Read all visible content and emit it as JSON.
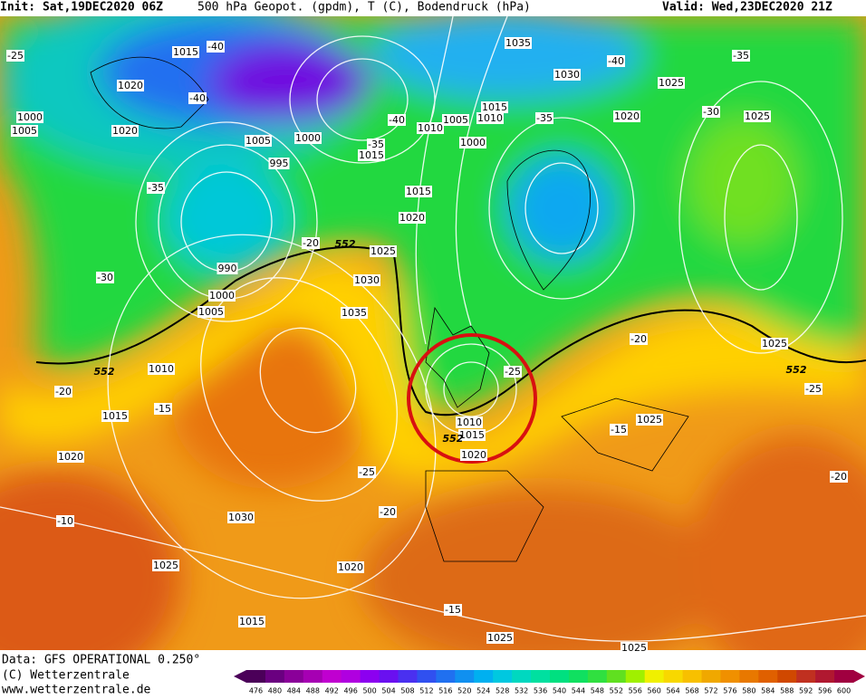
{
  "header": {
    "init": "Init: Sat,19DEC2020 06Z",
    "title": "500 hPa Geopot. (gpdm), T (C), Bodendruck (hPa)",
    "valid": "Valid: Wed,23DEC2020 21Z"
  },
  "footer": {
    "data": "Data: GFS OPERATIONAL 0.250°",
    "copyright": "(C) Wetterzentrale",
    "url": "www.wetterzentrale.de"
  },
  "isobar_labels": [
    "1015",
    "1020",
    "1000",
    "1005",
    "1020",
    "1005",
    "1000",
    "995",
    "1015",
    "1035",
    "1030",
    "1025",
    "1020",
    "1025",
    "1015",
    "1010",
    "1005",
    "1010",
    "1000",
    "1015",
    "1020",
    "1025",
    "1030",
    "1035",
    "990",
    "1000",
    "1005",
    "1010",
    "1015",
    "1020",
    "1030",
    "1025",
    "1020",
    "1015",
    "1025",
    "1025",
    "1010",
    "1015",
    "1020",
    "1025",
    "1025"
  ],
  "temperature_labels": [
    "-40",
    "-40",
    "-40",
    "-35",
    "-30",
    "-35",
    "-40",
    "-35",
    "-35",
    "-30",
    "-20",
    "-25",
    "-25",
    "-20",
    "-25",
    "-20",
    "-15",
    "-25",
    "-20",
    "-10",
    "-15",
    "-15",
    "-20"
  ],
  "contour_labels": [
    "552",
    "552",
    "552",
    "552"
  ],
  "colorbar": {
    "labels": [
      "476",
      "480",
      "484",
      "488",
      "492",
      "496",
      "500",
      "504",
      "508",
      "512",
      "516",
      "520",
      "524",
      "528",
      "532",
      "536",
      "540",
      "544",
      "548",
      "552",
      "556",
      "560",
      "564",
      "568",
      "572",
      "576",
      "580",
      "584",
      "588",
      "592",
      "596",
      "600"
    ],
    "colors": [
      "#4b0059",
      "#6a0080",
      "#8a0099",
      "#a600b3",
      "#c000d0",
      "#b000e0",
      "#8c00f0",
      "#6a10f0",
      "#4a30f0",
      "#3050f0",
      "#2070f0",
      "#1090f0",
      "#00b0f0",
      "#00c8e0",
      "#00d8c0",
      "#00e0a0",
      "#00e080",
      "#10e060",
      "#30e040",
      "#60e020",
      "#a0f000",
      "#f0f000",
      "#f8d800",
      "#f8c000",
      "#f0a800",
      "#f09000",
      "#e87800",
      "#e06000",
      "#d04800",
      "#c03020",
      "#b01830",
      "#a00040"
    ]
  }
}
